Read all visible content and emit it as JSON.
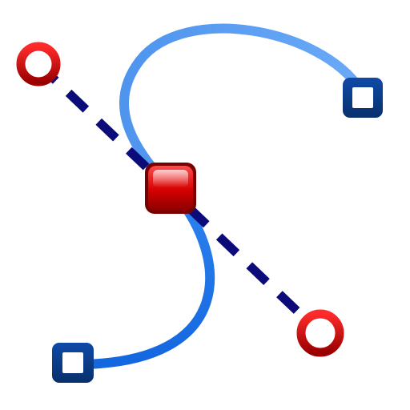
{
  "icon": {
    "name": "bezier-curve-edit-icon",
    "description_colors": {
      "curve_light": "#62a3f5",
      "curve_dark": "#1a73e8",
      "tangent_line": "#0b0b7a",
      "end_handle_fill": "#ffffff",
      "end_handle_stroke": "#0a3a86",
      "control_handle_ring_outer": "#8e0000",
      "control_handle_ring_inner": "#ff2a2a",
      "center_node": "#c00000"
    }
  }
}
